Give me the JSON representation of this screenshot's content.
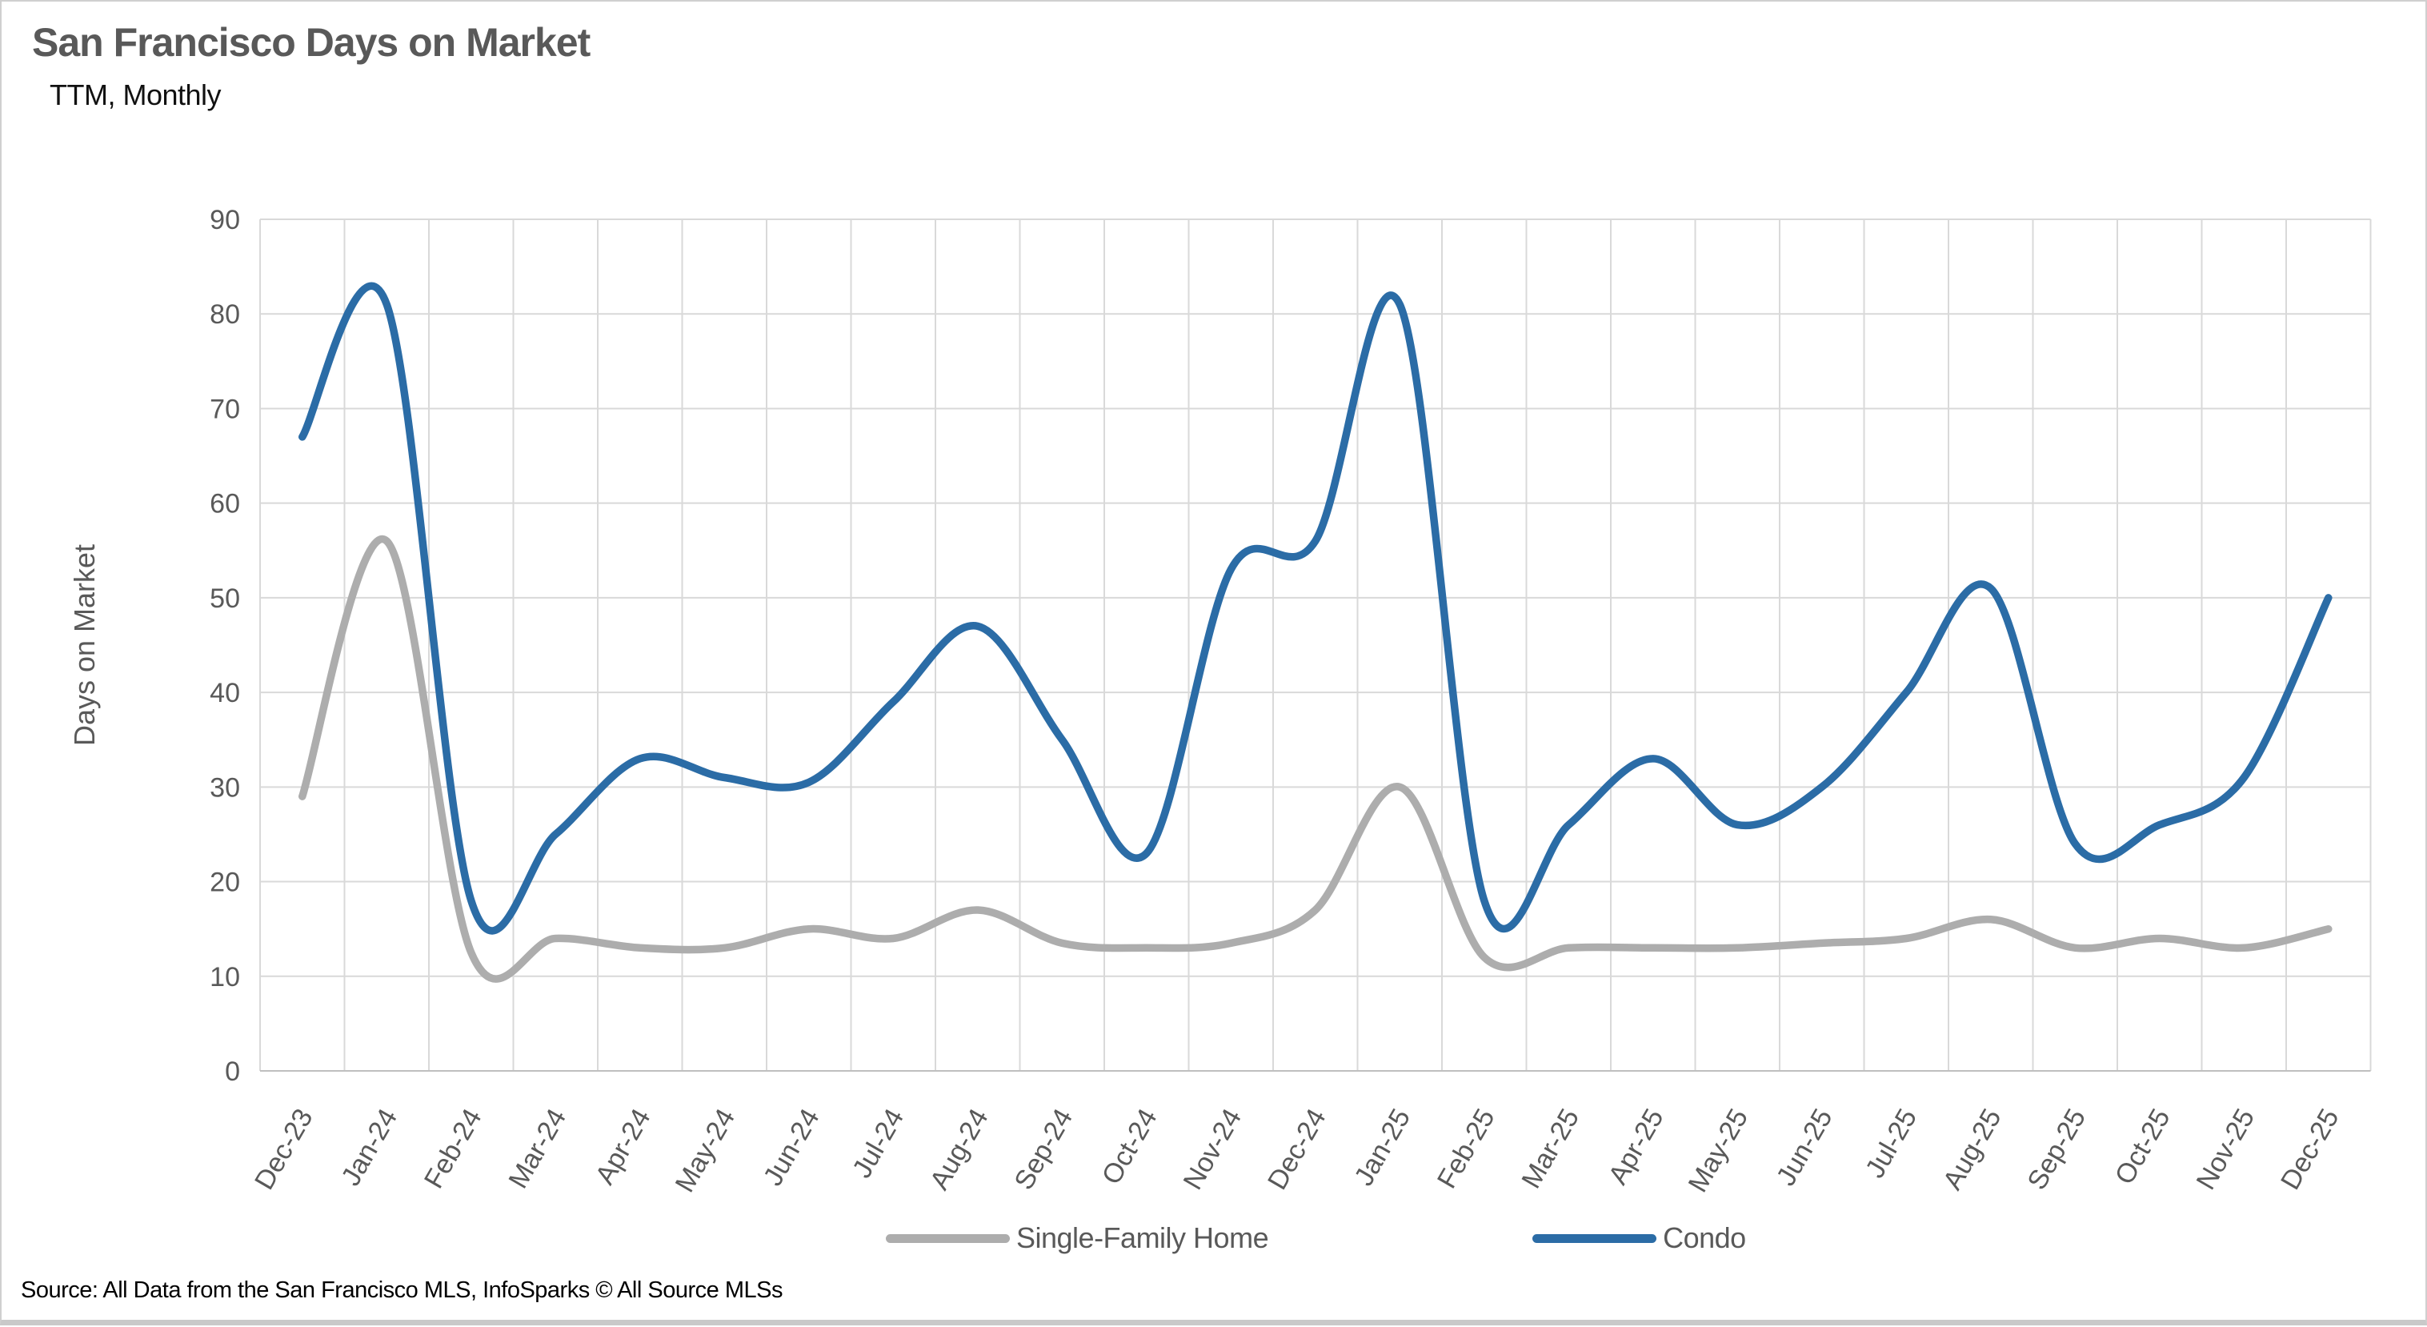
{
  "title": "San Francisco Days on Market",
  "subtitle": "TTM, Monthly",
  "y_axis_title": "Days on Market",
  "source": "Source: All Data from the San Francisco MLS, InfoSparks © All Source MLSs",
  "legend": {
    "sfh_label": "Single-Family Home",
    "condo_label": "Condo"
  },
  "colors": {
    "condo_line": "#2B6CA6",
    "sfh_line": "#ADADAD",
    "gridline": "#D9D9D9",
    "axis_line": "#BFBFBF",
    "axis_text": "#595959",
    "title_text": "#595959"
  },
  "chart_data": {
    "type": "line",
    "smooth": true,
    "title": "San Francisco Days on Market",
    "subtitle": "TTM, Monthly",
    "xlabel": "",
    "ylabel": "Days on Market",
    "ylim": [
      0,
      90
    ],
    "ytick_step": 10,
    "ytick_labels": [
      "0",
      "10",
      "20",
      "30",
      "40",
      "50",
      "60",
      "70",
      "80",
      "90"
    ],
    "grid": true,
    "legend_position": "bottom",
    "categories": [
      "Dec-23",
      "Jan-24",
      "Feb-24",
      "Mar-24",
      "Apr-24",
      "May-24",
      "Jun-24",
      "Jul-24",
      "Aug-24",
      "Sep-24",
      "Oct-24",
      "Nov-24",
      "Dec-24",
      "Jan-25",
      "Feb-25",
      "Mar-25",
      "Apr-25",
      "May-25",
      "Jun-25",
      "Jul-25",
      "Aug-25",
      "Sep-25",
      "Oct-25",
      "Nov-25",
      "Dec-25"
    ],
    "series": [
      {
        "name": "Single-Family Home",
        "color": "#ADADAD",
        "values": [
          29,
          56,
          12.5,
          14,
          13,
          13,
          15,
          14,
          17,
          13.5,
          13,
          13.5,
          17,
          30,
          12,
          13,
          13,
          13,
          13.5,
          14,
          16,
          13,
          14,
          13,
          15
        ]
      },
      {
        "name": "Condo",
        "color": "#2B6CA6",
        "values": [
          67,
          81,
          18,
          25,
          33,
          31,
          30.5,
          39,
          47,
          35,
          23,
          53,
          56,
          81,
          18,
          26,
          33,
          26,
          30,
          40,
          51,
          24,
          26,
          31,
          50
        ]
      }
    ]
  }
}
